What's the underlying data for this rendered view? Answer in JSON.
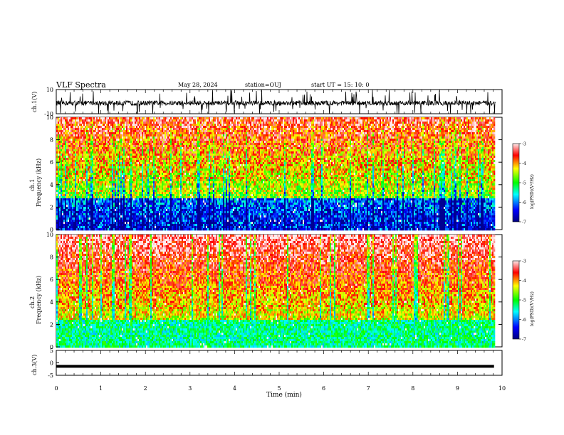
{
  "header": {
    "title": "VLF Spectra",
    "date": "May 28, 2024",
    "station": "station=OUJ",
    "start": "start UT =  15: 10: 0"
  },
  "chart_data": [
    {
      "type": "line",
      "ylabel": "ch.1(V)",
      "ylim": [
        -10,
        10
      ],
      "yticks": [
        "10",
        "-10"
      ],
      "x_range_min": [
        0,
        9.85
      ],
      "description_values": {
        "baseline": -1.2,
        "spike_min": -10,
        "spike_max": 10
      }
    },
    {
      "type": "heatmap",
      "ylabel": "ch.1\nFrequency (kHz)",
      "ylim": [
        0,
        10
      ],
      "yticks": [
        "0",
        "2",
        "4",
        "6",
        "8",
        "10"
      ],
      "colorbar": {
        "label": "log(PSD)(V²/Hz)",
        "range": [
          -7,
          -3
        ],
        "ticks": [
          "-3",
          "-4",
          "-5",
          "-6",
          "-7"
        ]
      }
    },
    {
      "type": "heatmap",
      "ylabel": "ch.2\nFrequency (kHz)",
      "ylim": [
        0,
        10
      ],
      "yticks": [
        "0",
        "2",
        "4",
        "6",
        "8",
        "10"
      ],
      "colorbar": {
        "label": "log(PSD)(V²/Hz)",
        "range": [
          -7,
          -3
        ],
        "ticks": [
          "-3",
          "-4",
          "-5",
          "-6",
          "-7"
        ]
      }
    },
    {
      "type": "line",
      "ylabel": "ch.3(V)",
      "ylim": [
        -5,
        5
      ],
      "yticks": [
        "5",
        "0",
        "-5"
      ],
      "values": {
        "level": -1.4
      }
    }
  ],
  "xaxis": {
    "label": "Time (min)",
    "range": [
      0,
      10
    ],
    "ticks": [
      "0",
      "1",
      "2",
      "3",
      "4",
      "5",
      "6",
      "7",
      "8",
      "9",
      "10"
    ]
  },
  "colors": {
    "jet": [
      "#000080",
      "#0000ff",
      "#00ffff",
      "#00ff00",
      "#ffff00",
      "#ff0000",
      "#ffffff"
    ]
  }
}
